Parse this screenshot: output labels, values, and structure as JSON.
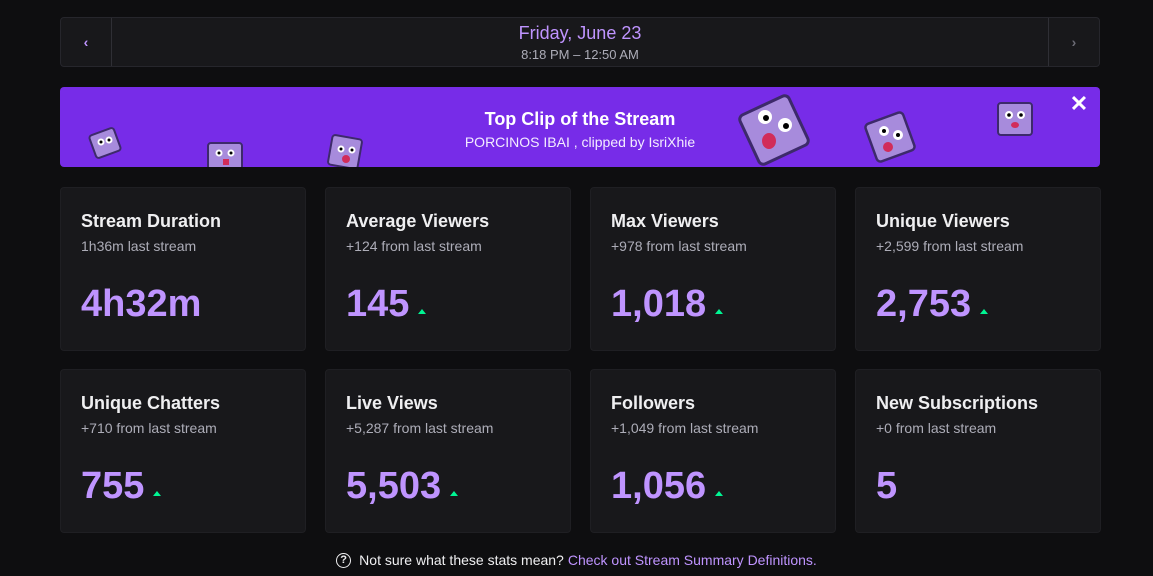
{
  "date_nav": {
    "prev_icon": "chevron-left-icon",
    "next_icon": "chevron-right-icon",
    "date": "Friday, June 23",
    "time_range": "8:18 PM – 12:50 AM"
  },
  "banner": {
    "title": "Top Clip of the Stream",
    "subtitle": "PORCINOS IBAI , clipped by IsriXhie",
    "close_icon": "close-icon",
    "background": "#772ce8"
  },
  "stats": [
    {
      "title": "Stream Duration",
      "sub": "1h36m last stream",
      "value": "4h32m",
      "trend": false
    },
    {
      "title": "Average Viewers",
      "sub": "+124 from last stream",
      "value": "145",
      "trend": true
    },
    {
      "title": "Max Viewers",
      "sub": "+978 from last stream",
      "value": "1,018",
      "trend": true
    },
    {
      "title": "Unique Viewers",
      "sub": "+2,599 from last stream",
      "value": "2,753",
      "trend": true
    },
    {
      "title": "Unique Chatters",
      "sub": "+710 from last stream",
      "value": "755",
      "trend": true
    },
    {
      "title": "Live Views",
      "sub": "+5,287 from last stream",
      "value": "5,503",
      "trend": true
    },
    {
      "title": "Followers",
      "sub": "+1,049 from last stream",
      "value": "1,056",
      "trend": true
    },
    {
      "title": "New Subscriptions",
      "sub": "+0 from last stream",
      "value": "5",
      "trend": false
    }
  ],
  "footer": {
    "help_icon": "question-circle-icon",
    "text": "Not sure what these stats mean?",
    "link": "Check out Stream Summary Definitions."
  },
  "colors": {
    "accent": "#bf94ff",
    "trend_up": "#00f593",
    "card_bg": "#18181b",
    "page_bg": "#0e0e10"
  }
}
